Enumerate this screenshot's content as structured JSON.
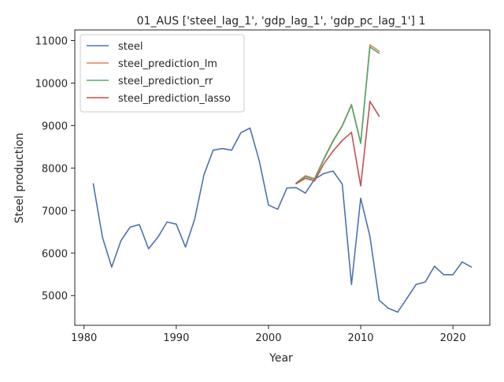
{
  "chart_data": {
    "type": "line",
    "title": "01_AUS ['steel_lag_1', 'gdp_lag_1', 'gdp_pc_lag_1'] 1",
    "xlabel": "Year",
    "ylabel": "Steel production",
    "xlim": [
      1979,
      2024
    ],
    "ylim": [
      4300,
      11250
    ],
    "xticks": [
      1980,
      1990,
      2000,
      2010,
      2020
    ],
    "yticks": [
      5000,
      6000,
      7000,
      8000,
      9000,
      10000,
      11000
    ],
    "grid": false,
    "legend_position": "top-left",
    "series": [
      {
        "name": "steel",
        "color": "#4c72b0",
        "x": [
          1981,
          1982,
          1983,
          1984,
          1985,
          1986,
          1987,
          1988,
          1989,
          1990,
          1991,
          1992,
          1993,
          1994,
          1995,
          1996,
          1997,
          1998,
          1999,
          2000,
          2001,
          2002,
          2003,
          2004,
          2005,
          2006,
          2007,
          2008,
          2009,
          2010,
          2011,
          2012,
          2013,
          2014,
          2015,
          2016,
          2017,
          2018,
          2019,
          2020,
          2021,
          2022
        ],
        "y": [
          7630,
          6370,
          5670,
          6290,
          6610,
          6670,
          6100,
          6370,
          6730,
          6680,
          6140,
          6800,
          7840,
          8420,
          8460,
          8420,
          8830,
          8940,
          8170,
          7130,
          7030,
          7530,
          7540,
          7410,
          7740,
          7870,
          7930,
          7620,
          5260,
          7290,
          6390,
          4890,
          4700,
          4610,
          4930,
          5260,
          5320,
          5690,
          5490,
          5490,
          5790,
          5670
        ]
      },
      {
        "name": "steel_prediction_lm",
        "color": "#dd8452",
        "x": [
          2003,
          2004,
          2005,
          2006,
          2007,
          2008,
          2009,
          2010,
          2011,
          2012
        ],
        "y": [
          7650,
          7820,
          7750,
          8220,
          8650,
          9000,
          9500,
          8600,
          10900,
          10750
        ]
      },
      {
        "name": "steel_prediction_rr",
        "color": "#55a868",
        "x": [
          2003,
          2004,
          2005,
          2006,
          2007,
          2008,
          2009,
          2010,
          2011,
          2012
        ],
        "y": [
          7640,
          7800,
          7740,
          8200,
          8630,
          8990,
          9480,
          8580,
          10850,
          10700
        ]
      },
      {
        "name": "steel_prediction_lasso",
        "color": "#c44e52",
        "x": [
          2003,
          2004,
          2005,
          2006,
          2007,
          2008,
          2009,
          2010,
          2011,
          2012
        ],
        "y": [
          7630,
          7760,
          7700,
          8100,
          8400,
          8650,
          8840,
          7580,
          9570,
          9220
        ]
      }
    ]
  }
}
